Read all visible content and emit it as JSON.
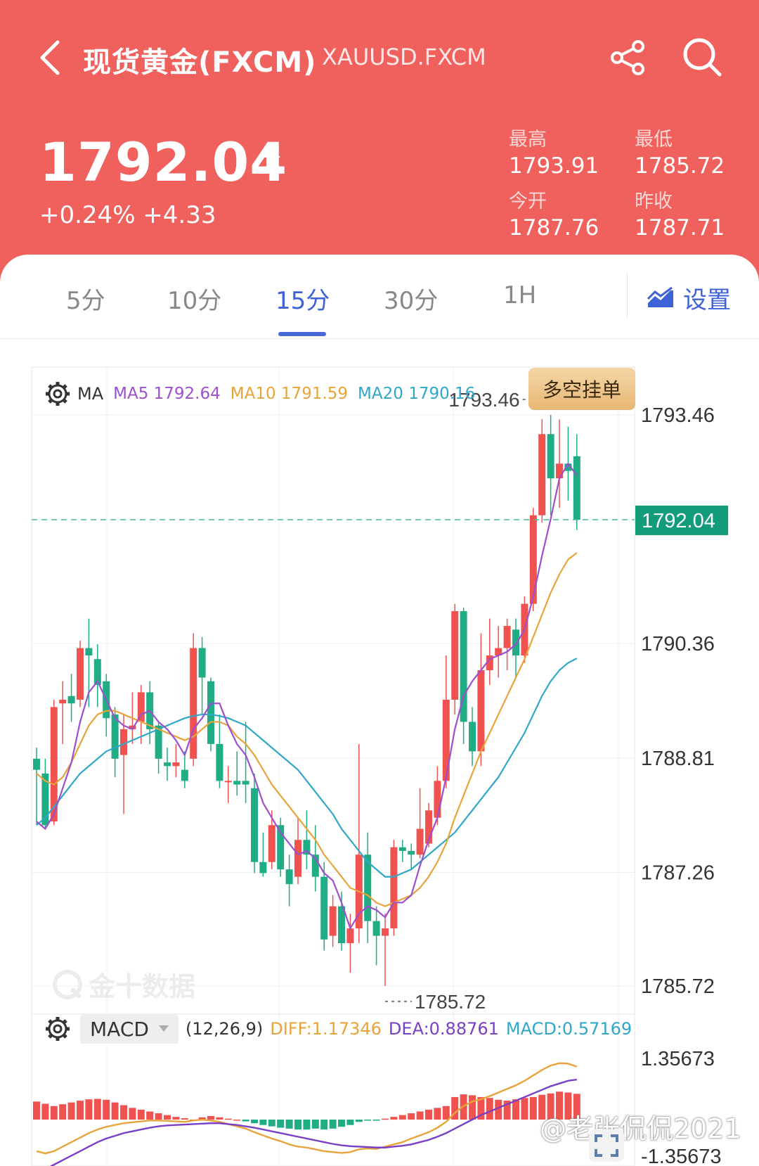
{
  "header": {
    "title": "现货黄金(FXCM)",
    "symbol": "XAUUSD.FXCM",
    "price": "1792.04",
    "change": "+0.24% +4.33",
    "stats": {
      "high_label": "最高",
      "high_value": "1793.91",
      "low_label": "最低",
      "low_value": "1785.72",
      "open_label": "今开",
      "open_value": "1787.76",
      "prev_close_label": "昨收",
      "prev_close_value": "1787.71"
    }
  },
  "tabs": [
    {
      "label": "5分",
      "active": false
    },
    {
      "label": "10分",
      "active": false
    },
    {
      "label": "15分",
      "active": true
    },
    {
      "label": "30分",
      "active": false
    },
    {
      "label": "1H",
      "active": false
    }
  ],
  "settings_label": "设置",
  "ma_legend": {
    "label": "MA",
    "ma5": "MA5 1792.64",
    "ma10": "MA10 1791.59",
    "ma20": "MA20 1790.16"
  },
  "order_button": "多空挂单",
  "price_axis": [
    "1793.46",
    "1790.36",
    "1788.81",
    "1787.26",
    "1785.72"
  ],
  "current_price_tag": "1792.04",
  "high_marker": "1793.46",
  "low_marker": "1785.72",
  "macd_legend": {
    "indicator": "MACD",
    "params": "(12,26,9)",
    "diff": "DIFF:1.17346",
    "dea": "DEA:0.88761",
    "macd": "MACD:0.57169"
  },
  "macd_axis": [
    "1.35673",
    "-1.35673"
  ],
  "watermark_logo": "金十数据",
  "weibo_watermark": "@老张侃侃2021",
  "colors": {
    "header_bg": "#f0605d",
    "up": "#f0534f",
    "down": "#20ac84",
    "ma5": "#9c4fcf",
    "ma10": "#e8a33a",
    "ma20": "#2fa7c9",
    "diff": "#e8a33a",
    "dea": "#7a3fc7",
    "accent": "#3f63d6",
    "price_tag": "#139c7a"
  },
  "icons": [
    "back-arrow-icon",
    "share-icon",
    "search-icon",
    "up-arrow-icon",
    "chart-icon",
    "gear-icon",
    "dropdown-icon",
    "fullscreen-icon"
  ],
  "chart_data": {
    "type": "candlestick",
    "price_range": [
      1785.72,
      1793.46
    ],
    "candles": [
      {
        "o": 1788.8,
        "h": 1788.95,
        "c": 1788.65,
        "l": 1787.9
      },
      {
        "o": 1788.6,
        "h": 1788.8,
        "c": 1787.9,
        "l": 1787.85
      },
      {
        "o": 1787.95,
        "h": 1789.6,
        "c": 1789.5,
        "l": 1787.9
      },
      {
        "o": 1789.55,
        "h": 1789.85,
        "c": 1789.6,
        "l": 1789.0
      },
      {
        "o": 1789.65,
        "h": 1789.95,
        "c": 1789.55,
        "l": 1789.3
      },
      {
        "o": 1789.6,
        "h": 1790.4,
        "c": 1790.3,
        "l": 1789.5
      },
      {
        "o": 1790.3,
        "h": 1790.7,
        "c": 1790.2,
        "l": 1789.5
      },
      {
        "o": 1790.15,
        "h": 1790.35,
        "c": 1789.8,
        "l": 1789.5
      },
      {
        "o": 1789.85,
        "h": 1789.95,
        "c": 1789.35,
        "l": 1789.1
      },
      {
        "o": 1789.4,
        "h": 1789.5,
        "c": 1788.8,
        "l": 1788.55
      },
      {
        "o": 1788.85,
        "h": 1789.4,
        "c": 1789.2,
        "l": 1788.05
      },
      {
        "o": 1789.2,
        "h": 1789.7,
        "c": 1789.25,
        "l": 1789.0
      },
      {
        "o": 1789.3,
        "h": 1789.8,
        "c": 1789.7,
        "l": 1789.0
      },
      {
        "o": 1789.7,
        "h": 1789.85,
        "c": 1789.2,
        "l": 1789.0
      },
      {
        "o": 1789.25,
        "h": 1789.3,
        "c": 1788.8,
        "l": 1788.6
      },
      {
        "o": 1788.75,
        "h": 1788.95,
        "c": 1788.7,
        "l": 1788.5
      },
      {
        "o": 1788.7,
        "h": 1789.0,
        "c": 1788.75,
        "l": 1788.55
      },
      {
        "o": 1788.65,
        "h": 1788.9,
        "c": 1788.5,
        "l": 1788.4
      },
      {
        "o": 1788.8,
        "h": 1790.5,
        "c": 1790.3,
        "l": 1788.7
      },
      {
        "o": 1790.3,
        "h": 1790.45,
        "c": 1789.9,
        "l": 1789.4
      },
      {
        "o": 1789.85,
        "h": 1789.9,
        "c": 1789.0,
        "l": 1788.9
      },
      {
        "o": 1789.0,
        "h": 1789.4,
        "c": 1788.5,
        "l": 1788.4
      },
      {
        "o": 1788.5,
        "h": 1788.7,
        "c": 1788.5,
        "l": 1788.2
      },
      {
        "o": 1788.5,
        "h": 1788.9,
        "c": 1788.45,
        "l": 1788.3
      },
      {
        "o": 1788.5,
        "h": 1789.3,
        "c": 1788.45,
        "l": 1788.2
      },
      {
        "o": 1788.4,
        "h": 1788.6,
        "c": 1787.4,
        "l": 1787.25
      },
      {
        "o": 1787.4,
        "h": 1787.8,
        "c": 1787.25,
        "l": 1787.2
      },
      {
        "o": 1787.4,
        "h": 1788.1,
        "c": 1787.9,
        "l": 1787.3
      },
      {
        "o": 1787.9,
        "h": 1788.0,
        "c": 1787.3,
        "l": 1787.2
      },
      {
        "o": 1787.3,
        "h": 1787.5,
        "c": 1787.1,
        "l": 1786.8
      },
      {
        "o": 1787.2,
        "h": 1788.0,
        "c": 1787.7,
        "l": 1787.1
      },
      {
        "o": 1787.7,
        "h": 1788.1,
        "c": 1787.5,
        "l": 1787.3
      },
      {
        "o": 1787.5,
        "h": 1787.9,
        "c": 1787.2,
        "l": 1787.0
      },
      {
        "o": 1787.2,
        "h": 1787.4,
        "c": 1786.35,
        "l": 1786.2
      },
      {
        "o": 1786.4,
        "h": 1786.95,
        "c": 1786.8,
        "l": 1786.25
      },
      {
        "o": 1786.8,
        "h": 1787.0,
        "c": 1786.3,
        "l": 1786.2
      },
      {
        "o": 1786.3,
        "h": 1786.7,
        "c": 1786.5,
        "l": 1785.9
      },
      {
        "o": 1786.5,
        "h": 1789.0,
        "c": 1787.5,
        "l": 1786.3
      },
      {
        "o": 1787.5,
        "h": 1787.8,
        "c": 1786.6,
        "l": 1786.3
      },
      {
        "o": 1786.6,
        "h": 1786.8,
        "c": 1786.4,
        "l": 1786.0
      },
      {
        "o": 1786.4,
        "h": 1786.7,
        "c": 1786.5,
        "l": 1785.72
      },
      {
        "o": 1786.5,
        "h": 1787.7,
        "c": 1787.6,
        "l": 1786.4
      },
      {
        "o": 1787.6,
        "h": 1787.7,
        "c": 1787.55,
        "l": 1787.4
      },
      {
        "o": 1787.55,
        "h": 1787.65,
        "c": 1787.5,
        "l": 1787.3
      },
      {
        "o": 1787.5,
        "h": 1788.4,
        "c": 1787.85,
        "l": 1787.45
      },
      {
        "o": 1787.65,
        "h": 1788.2,
        "c": 1788.1,
        "l": 1787.6
      },
      {
        "o": 1788.0,
        "h": 1788.7,
        "c": 1788.5,
        "l": 1787.9
      },
      {
        "o": 1788.5,
        "h": 1790.2,
        "c": 1789.6,
        "l": 1788.4
      },
      {
        "o": 1789.6,
        "h": 1790.9,
        "c": 1790.8,
        "l": 1789.4
      },
      {
        "o": 1790.8,
        "h": 1790.85,
        "c": 1789.3,
        "l": 1789.0
      },
      {
        "o": 1789.3,
        "h": 1789.5,
        "c": 1788.9,
        "l": 1788.7
      },
      {
        "o": 1788.9,
        "h": 1790.5,
        "c": 1790.0,
        "l": 1788.7
      },
      {
        "o": 1790.0,
        "h": 1790.7,
        "c": 1790.2,
        "l": 1789.8
      },
      {
        "o": 1790.2,
        "h": 1790.6,
        "c": 1790.3,
        "l": 1789.9
      },
      {
        "o": 1790.3,
        "h": 1790.7,
        "c": 1790.6,
        "l": 1790.0
      },
      {
        "o": 1790.55,
        "h": 1790.7,
        "c": 1790.2,
        "l": 1789.9
      },
      {
        "o": 1790.2,
        "h": 1791.0,
        "c": 1790.9,
        "l": 1790.1
      },
      {
        "o": 1790.9,
        "h": 1792.2,
        "c": 1792.1,
        "l": 1790.8
      },
      {
        "o": 1792.1,
        "h": 1793.4,
        "c": 1793.2,
        "l": 1792.0
      },
      {
        "o": 1793.2,
        "h": 1793.46,
        "c": 1792.6,
        "l": 1792.1
      },
      {
        "o": 1792.6,
        "h": 1793.4,
        "c": 1792.8,
        "l": 1792.2
      },
      {
        "o": 1792.8,
        "h": 1793.3,
        "c": 1792.7,
        "l": 1792.3
      },
      {
        "o": 1792.9,
        "h": 1793.2,
        "c": 1792.04,
        "l": 1791.9
      }
    ],
    "ma5": [
      1787.95,
      1787.85,
      1788.05,
      1788.4,
      1788.75,
      1789.3,
      1789.7,
      1789.85,
      1789.6,
      1789.35,
      1789.25,
      1789.2,
      1789.4,
      1789.45,
      1789.3,
      1789.2,
      1789.05,
      1788.85,
      1789.2,
      1789.35,
      1789.55,
      1789.55,
      1789.25,
      1789.0,
      1788.85,
      1788.55,
      1788.2,
      1788.0,
      1787.8,
      1787.65,
      1787.5,
      1787.55,
      1787.45,
      1787.25,
      1787.15,
      1786.85,
      1786.5,
      1786.7,
      1786.8,
      1786.75,
      1786.65,
      1786.85,
      1786.85,
      1786.95,
      1787.35,
      1787.7,
      1788.0,
      1788.55,
      1789.2,
      1789.65,
      1789.85,
      1790.0,
      1790.15,
      1790.2,
      1790.25,
      1790.35,
      1790.55,
      1791.0,
      1791.55,
      1792.05,
      1792.6,
      1792.8,
      1792.64
    ],
    "ma10": [
      1788.6,
      1788.5,
      1788.45,
      1788.55,
      1788.75,
      1789.0,
      1789.25,
      1789.4,
      1789.45,
      1789.45,
      1789.4,
      1789.35,
      1789.3,
      1789.25,
      1789.2,
      1789.15,
      1789.1,
      1789.05,
      1789.1,
      1789.2,
      1789.3,
      1789.3,
      1789.25,
      1789.1,
      1789.0,
      1788.85,
      1788.65,
      1788.45,
      1788.3,
      1788.15,
      1788.0,
      1787.85,
      1787.7,
      1787.5,
      1787.35,
      1787.2,
      1787.05,
      1787.0,
      1786.95,
      1786.85,
      1786.8,
      1786.85,
      1786.9,
      1786.95,
      1787.05,
      1787.2,
      1787.4,
      1787.65,
      1788.0,
      1788.3,
      1788.6,
      1788.9,
      1789.15,
      1789.4,
      1789.65,
      1789.9,
      1790.15,
      1790.45,
      1790.75,
      1791.05,
      1791.3,
      1791.5,
      1791.59
    ],
    "ma20": [
      1787.9,
      1788.0,
      1788.15,
      1788.3,
      1788.45,
      1788.6,
      1788.7,
      1788.8,
      1788.9,
      1788.95,
      1789.0,
      1789.05,
      1789.1,
      1789.15,
      1789.2,
      1789.25,
      1789.3,
      1789.35,
      1789.38,
      1789.4,
      1789.4,
      1789.38,
      1789.35,
      1789.3,
      1789.25,
      1789.15,
      1789.05,
      1788.95,
      1788.85,
      1788.75,
      1788.65,
      1788.5,
      1788.35,
      1788.2,
      1788.05,
      1787.85,
      1787.7,
      1787.55,
      1787.4,
      1787.3,
      1787.2,
      1787.2,
      1787.25,
      1787.3,
      1787.4,
      1787.5,
      1787.6,
      1787.7,
      1787.8,
      1787.95,
      1788.1,
      1788.25,
      1788.4,
      1788.55,
      1788.75,
      1788.95,
      1789.15,
      1789.4,
      1789.65,
      1789.85,
      1790.0,
      1790.1,
      1790.16
    ],
    "macd_range": [
      -1.35673,
      1.35673
    ],
    "macd_hist": [
      0.4,
      0.35,
      0.3,
      0.34,
      0.38,
      0.42,
      0.45,
      0.46,
      0.44,
      0.38,
      0.32,
      0.26,
      0.22,
      0.18,
      0.14,
      0.1,
      0.06,
      0.03,
      0.0,
      0.05,
      0.08,
      0.05,
      0.02,
      0.0,
      -0.04,
      -0.08,
      -0.12,
      -0.15,
      -0.18,
      -0.2,
      -0.22,
      -0.22,
      -0.2,
      -0.22,
      -0.2,
      -0.16,
      -0.12,
      -0.05,
      -0.02,
      -0.02,
      0.02,
      0.06,
      0.1,
      0.14,
      0.18,
      0.22,
      0.26,
      0.3,
      0.5,
      0.56,
      0.54,
      0.5,
      0.48,
      0.44,
      0.42,
      0.45,
      0.48,
      0.5,
      0.55,
      0.58,
      0.62,
      0.6,
      0.57169
    ],
    "diff": [
      -0.7,
      -0.75,
      -0.7,
      -0.6,
      -0.5,
      -0.4,
      -0.3,
      -0.22,
      -0.16,
      -0.12,
      -0.08,
      -0.06,
      -0.04,
      -0.02,
      -0.02,
      -0.03,
      -0.04,
      -0.05,
      -0.02,
      0.0,
      -0.02,
      -0.05,
      -0.1,
      -0.15,
      -0.2,
      -0.28,
      -0.35,
      -0.42,
      -0.48,
      -0.55,
      -0.6,
      -0.62,
      -0.66,
      -0.7,
      -0.72,
      -0.74,
      -0.72,
      -0.66,
      -0.64,
      -0.65,
      -0.6,
      -0.55,
      -0.5,
      -0.42,
      -0.35,
      -0.28,
      -0.18,
      -0.05,
      0.15,
      0.3,
      0.4,
      0.45,
      0.52,
      0.6,
      0.68,
      0.76,
      0.86,
      0.98,
      1.1,
      1.2,
      1.25,
      1.24,
      1.17346
    ],
    "dea": [
      -1.15,
      -1.1,
      -1.0,
      -0.9,
      -0.8,
      -0.7,
      -0.6,
      -0.5,
      -0.42,
      -0.36,
      -0.3,
      -0.26,
      -0.22,
      -0.18,
      -0.15,
      -0.13,
      -0.12,
      -0.11,
      -0.1,
      -0.09,
      -0.08,
      -0.08,
      -0.1,
      -0.12,
      -0.15,
      -0.18,
      -0.22,
      -0.26,
      -0.3,
      -0.34,
      -0.38,
      -0.42,
      -0.46,
      -0.5,
      -0.54,
      -0.57,
      -0.59,
      -0.6,
      -0.61,
      -0.62,
      -0.62,
      -0.6,
      -0.58,
      -0.55,
      -0.5,
      -0.45,
      -0.38,
      -0.3,
      -0.2,
      -0.1,
      0.0,
      0.1,
      0.18,
      0.26,
      0.34,
      0.42,
      0.5,
      0.58,
      0.66,
      0.74,
      0.8,
      0.86,
      0.88761
    ]
  }
}
